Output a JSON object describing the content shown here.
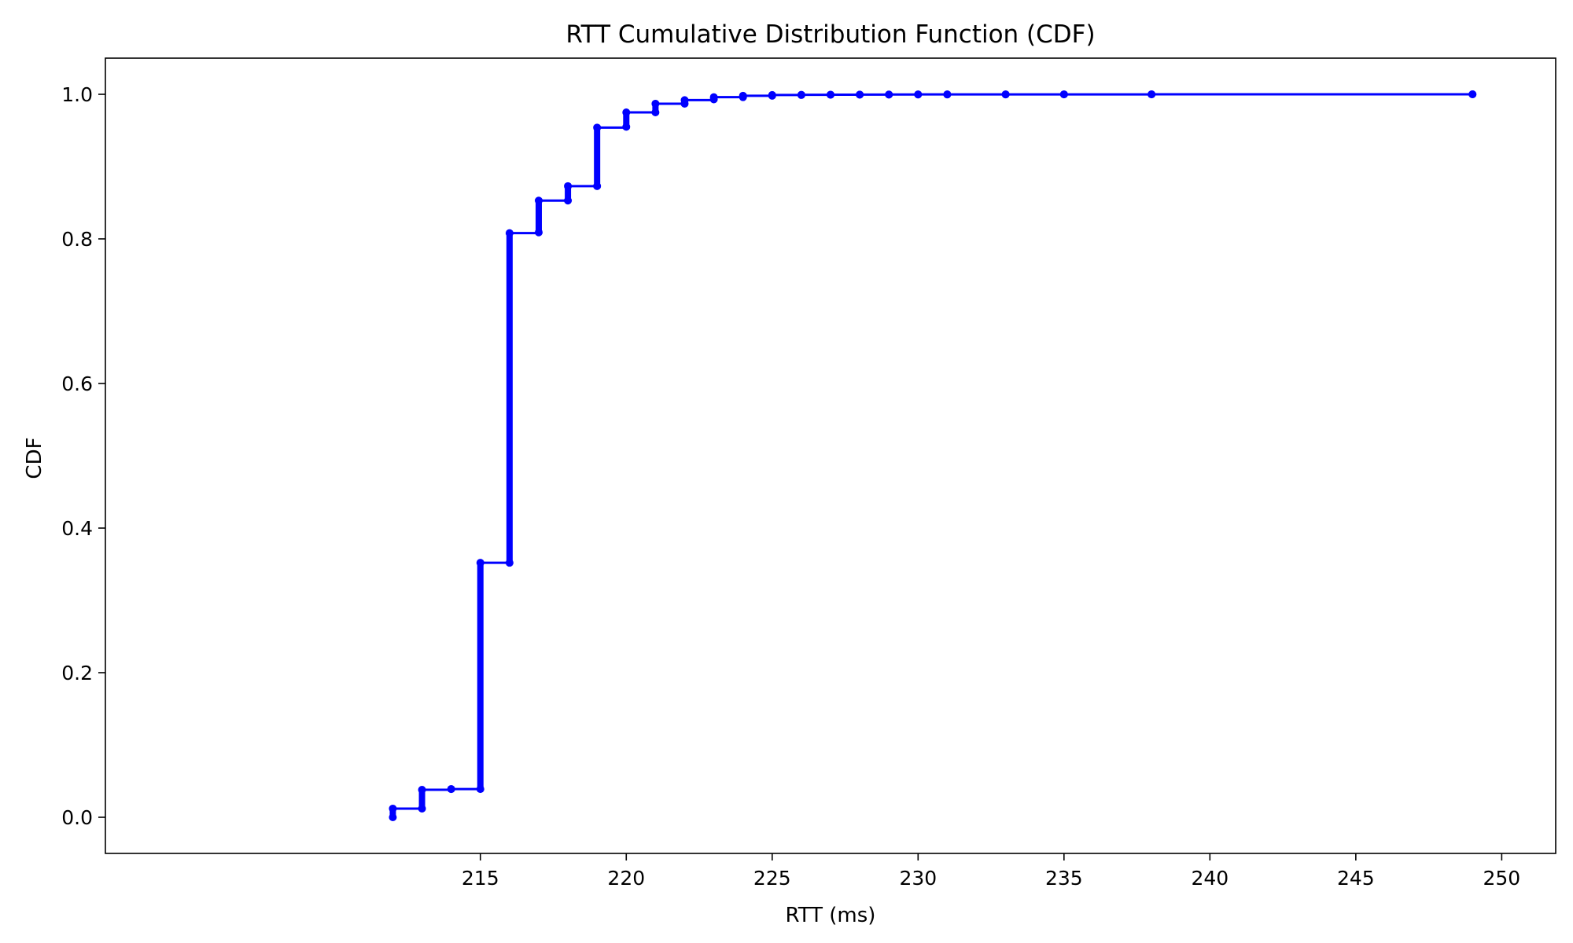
{
  "chart_data": {
    "type": "line",
    "title": "RTT Cumulative Distribution Function (CDF)",
    "xlabel": "RTT (ms)",
    "ylabel": "CDF",
    "xlim": [
      202.15,
      251.85
    ],
    "ylim": [
      -0.05,
      1.05
    ],
    "x_ticks": [
      215,
      220,
      225,
      230,
      235,
      240,
      245,
      250
    ],
    "y_ticks": [
      0.0,
      0.2,
      0.4,
      0.6,
      0.8,
      1.0
    ],
    "x_tick_labels": [
      "215",
      "220",
      "225",
      "230",
      "235",
      "240",
      "245",
      "250"
    ],
    "y_tick_labels": [
      "0.0",
      "0.2",
      "0.4",
      "0.6",
      "0.8",
      "1.0"
    ],
    "grid": false,
    "legend": "none",
    "line_color": "#0000ff",
    "series": [
      {
        "style": "step-post with point markers",
        "points": [
          {
            "x": 212,
            "y_start": 0.0,
            "y_end": 0.012
          },
          {
            "x": 213,
            "y_start": 0.012,
            "y_end": 0.038
          },
          {
            "x": 214,
            "y_start": 0.039,
            "y_end": 0.039
          },
          {
            "x": 215,
            "y_start": 0.039,
            "y_end": 0.352
          },
          {
            "x": 216,
            "y_start": 0.352,
            "y_end": 0.808
          },
          {
            "x": 217,
            "y_start": 0.809,
            "y_end": 0.853
          },
          {
            "x": 218,
            "y_start": 0.853,
            "y_end": 0.873
          },
          {
            "x": 219,
            "y_start": 0.873,
            "y_end": 0.954
          },
          {
            "x": 220,
            "y_start": 0.955,
            "y_end": 0.975
          },
          {
            "x": 221,
            "y_start": 0.975,
            "y_end": 0.987
          },
          {
            "x": 222,
            "y_start": 0.987,
            "y_end": 0.992
          },
          {
            "x": 223,
            "y_start": 0.993,
            "y_end": 0.996
          },
          {
            "x": 224,
            "y_start": 0.996,
            "y_end": 0.998
          },
          {
            "x": 225,
            "y_start": 0.998,
            "y_end": 0.999
          },
          {
            "x": 226,
            "y_start": 0.999,
            "y_end": 0.9993
          },
          {
            "x": 227,
            "y_start": 0.9993,
            "y_end": 0.9995
          },
          {
            "x": 228,
            "y_start": 0.9995,
            "y_end": 0.9996
          },
          {
            "x": 229,
            "y_start": 0.9996,
            "y_end": 0.9997
          },
          {
            "x": 230,
            "y_start": 0.9997,
            "y_end": 0.9998
          },
          {
            "x": 231,
            "y_start": 0.9998,
            "y_end": 0.9998
          },
          {
            "x": 233,
            "y_start": 0.9998,
            "y_end": 0.9999
          },
          {
            "x": 235,
            "y_start": 0.9999,
            "y_end": 0.9999
          },
          {
            "x": 238,
            "y_start": 0.9999,
            "y_end": 0.99995
          },
          {
            "x": 249,
            "y_start": 1.0,
            "y_end": 1.0
          }
        ]
      }
    ]
  }
}
